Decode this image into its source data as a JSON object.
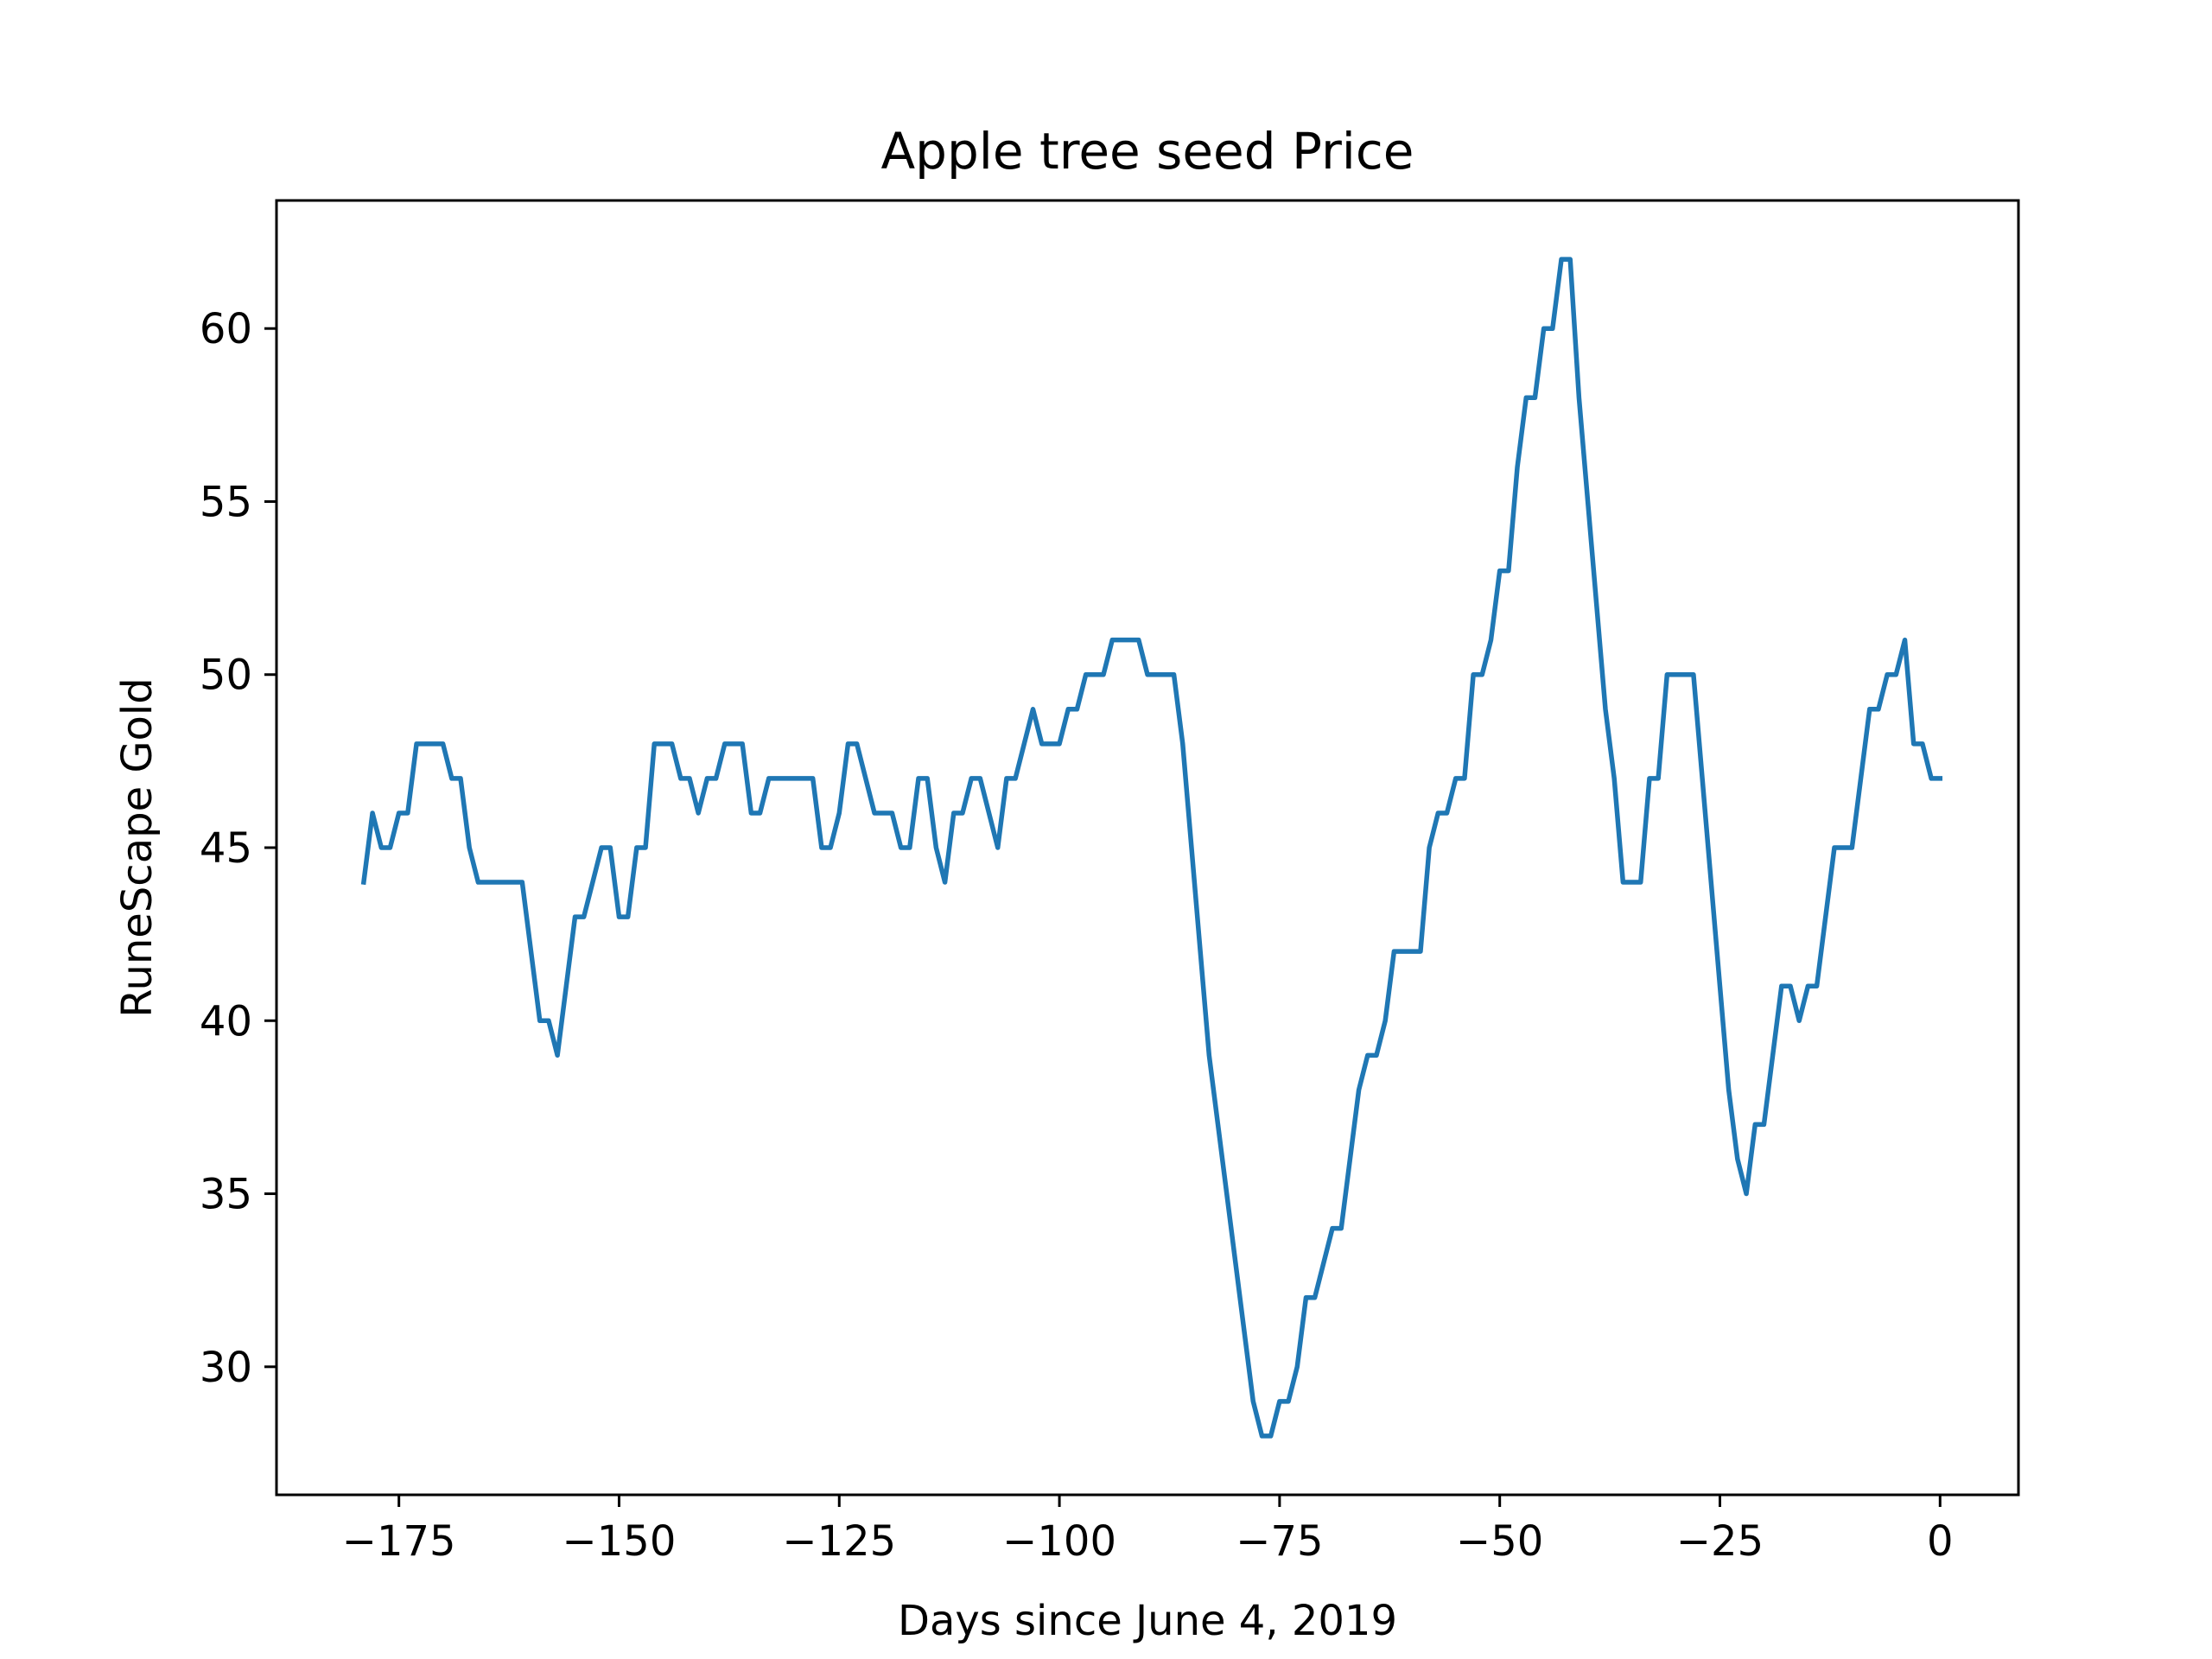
{
  "chart_data": {
    "type": "line",
    "title": "Apple tree seed Price",
    "xlabel": "Days since June 4, 2019",
    "ylabel": "RuneScape Gold",
    "xlim": [
      -188.9,
      8.9
    ],
    "ylim": [
      26.3,
      63.7
    ],
    "xticks": [
      -175,
      -150,
      -125,
      -100,
      -75,
      -50,
      -25,
      0
    ],
    "xtick_labels": [
      "−175",
      "−150",
      "−125",
      "−100",
      "−75",
      "−50",
      "−25",
      "0"
    ],
    "yticks": [
      30,
      35,
      40,
      45,
      50,
      55,
      60
    ],
    "ytick_labels": [
      "30",
      "35",
      "40",
      "45",
      "50",
      "55",
      "60"
    ],
    "grid": false,
    "legend": "none",
    "series": [
      {
        "color": "#1f77b4",
        "x": [
          -179,
          -178,
          -177,
          -176,
          -175,
          -174,
          -173,
          -172,
          -171,
          -170,
          -169,
          -168,
          -167,
          -166,
          -165,
          -164,
          -163,
          -162,
          -161,
          -160,
          -159,
          -158,
          -157,
          -156,
          -155,
          -154,
          -153,
          -152,
          -151,
          -150,
          -149,
          -148,
          -147,
          -146,
          -145,
          -144,
          -143,
          -142,
          -141,
          -140,
          -139,
          -138,
          -137,
          -136,
          -135,
          -134,
          -133,
          -132,
          -131,
          -130,
          -129,
          -128,
          -127,
          -126,
          -125,
          -124,
          -123,
          -122,
          -121,
          -120,
          -119,
          -118,
          -117,
          -116,
          -115,
          -114,
          -113,
          -112,
          -111,
          -110,
          -109,
          -108,
          -107,
          -106,
          -105,
          -104,
          -103,
          -102,
          -101,
          -100,
          -99,
          -98,
          -97,
          -96,
          -95,
          -94,
          -93,
          -92,
          -91,
          -90,
          -89,
          -88,
          -87,
          -86,
          -85,
          -84,
          -83,
          -82,
          -81,
          -80,
          -79,
          -78,
          -77,
          -76,
          -75,
          -74,
          -73,
          -72,
          -71,
          -70,
          -69,
          -68,
          -67,
          -66,
          -65,
          -64,
          -63,
          -62,
          -61,
          -60,
          -59,
          -58,
          -57,
          -56,
          -55,
          -54,
          -53,
          -52,
          -51,
          -50,
          -49,
          -48,
          -47,
          -46,
          -45,
          -44,
          -43,
          -42,
          -41,
          -40,
          -39,
          -38,
          -37,
          -36,
          -35,
          -34,
          -33,
          -32,
          -31,
          -30,
          -29,
          -28,
          -27,
          -26,
          -25,
          -24,
          -23,
          -22,
          -21,
          -20,
          -19,
          -18,
          -17,
          -16,
          -15,
          -14,
          -13,
          -12,
          -11,
          -10,
          -9,
          -8,
          -7,
          -6,
          -5,
          -4,
          -3,
          -2,
          -1,
          0
        ],
        "y": [
          44,
          46,
          45,
          45,
          46,
          46,
          48,
          48,
          48,
          48,
          47,
          47,
          45,
          44,
          44,
          44,
          44,
          44,
          44,
          42,
          40,
          40,
          39,
          41,
          43,
          43,
          44,
          45,
          45,
          43,
          43,
          45,
          45,
          48,
          48,
          48,
          47,
          47,
          46,
          47,
          47,
          48,
          48,
          48,
          46,
          46,
          47,
          47,
          47,
          47,
          47,
          47,
          45,
          45,
          46,
          48,
          48,
          47,
          46,
          46,
          46,
          45,
          45,
          47,
          47,
          45,
          44,
          46,
          46,
          47,
          47,
          46,
          45,
          47,
          47,
          48,
          49,
          48,
          48,
          48,
          49,
          49,
          50,
          50,
          50,
          51,
          51,
          51,
          51,
          50,
          50,
          50,
          50,
          48,
          45,
          42,
          39,
          37,
          35,
          33,
          31,
          29,
          28,
          28,
          29,
          29,
          30,
          32,
          32,
          33,
          34,
          34,
          36,
          38,
          39,
          39,
          40,
          42,
          42,
          42,
          42,
          45,
          46,
          46,
          47,
          47,
          50,
          50,
          51,
          53,
          53,
          56,
          58,
          58,
          60,
          60,
          62,
          62,
          58,
          55,
          52,
          49,
          47,
          44,
          44,
          44,
          47,
          47,
          50,
          50,
          50,
          50,
          47,
          44,
          41,
          38,
          36,
          35,
          37,
          37,
          39,
          41,
          41,
          40,
          41,
          41,
          43,
          45,
          45,
          45,
          47,
          49,
          49,
          50,
          50,
          51,
          48,
          48,
          47,
          47
        ]
      }
    ]
  }
}
